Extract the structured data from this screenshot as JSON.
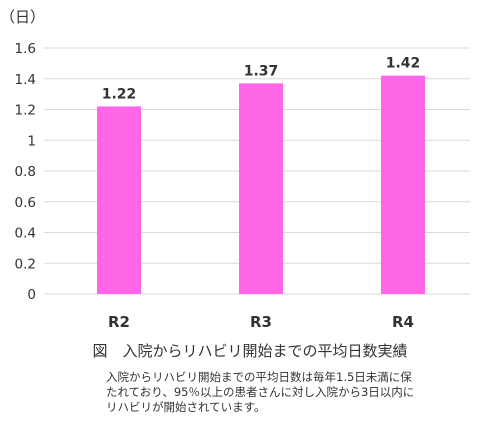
{
  "chart_data": {
    "type": "bar",
    "unit_label": "（日）",
    "categories": [
      "R2",
      "R3",
      "R4"
    ],
    "values": [
      1.22,
      1.37,
      1.42
    ],
    "value_labels": [
      "1.22",
      "1.37",
      "1.42"
    ],
    "yticks": [
      "0",
      "0.2",
      "0.4",
      "0.6",
      "0.8",
      "1",
      "1.2",
      "1.4",
      "1.6"
    ],
    "ylim": [
      0,
      1.6
    ],
    "grid": true,
    "bar_color": "#FF66E8"
  },
  "caption": "図　入院からリハビリ開始までの平均日数実績",
  "note_lines": [
    "入院からリハビリ開始までの平均日数は毎年1.5日未満に保",
    "たれており、95％以上の患者さんに対し入院から3日以内に",
    "リハビリが開始されています。"
  ]
}
